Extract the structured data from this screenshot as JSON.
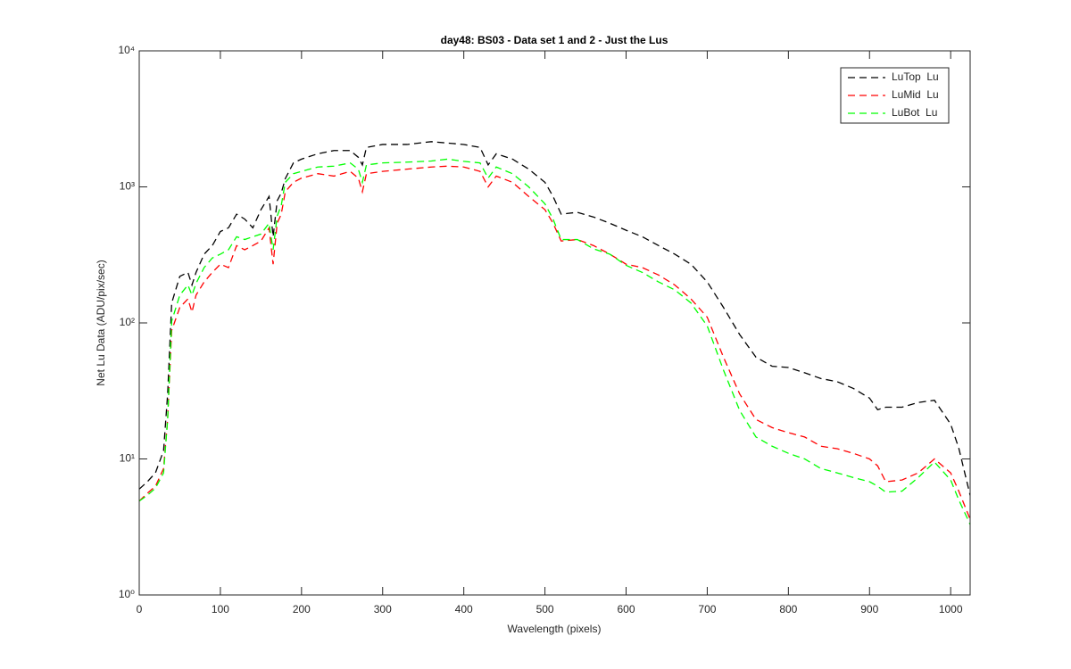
{
  "chart_data": {
    "type": "line",
    "title": "day48: BS03 - Data set 1 and 2 - Just the Lus",
    "x_label": "Wavelength (pixels)",
    "y_label": "Net Lu Data (ADU/pix/sec)",
    "log_y": true,
    "legend_loc": "upper right",
    "line_style": "dashed",
    "xlim": [
      0,
      1024
    ],
    "xticks": [
      0,
      100,
      200,
      300,
      400,
      500,
      600,
      700,
      800,
      900,
      1000
    ],
    "ylim": [
      1,
      10000
    ],
    "yticks": [
      {
        "value": 1,
        "label": "10⁰"
      },
      {
        "value": 10,
        "label": "10¹"
      },
      {
        "value": 100,
        "label": "10²"
      },
      {
        "value": 1000,
        "label": "10³"
      },
      {
        "value": 10000,
        "label": "10⁴"
      }
    ],
    "x": [
      0,
      10,
      20,
      30,
      35,
      40,
      50,
      60,
      65,
      70,
      80,
      90,
      100,
      110,
      120,
      130,
      140,
      150,
      160,
      165,
      170,
      175,
      180,
      190,
      200,
      220,
      240,
      260,
      270,
      275,
      280,
      300,
      330,
      360,
      380,
      400,
      420,
      430,
      440,
      460,
      480,
      500,
      510,
      520,
      540,
      560,
      580,
      600,
      620,
      640,
      660,
      680,
      700,
      720,
      740,
      760,
      780,
      800,
      820,
      840,
      860,
      880,
      900,
      910,
      920,
      940,
      960,
      980,
      1000,
      1010,
      1024
    ],
    "series": [
      {
        "name": "LuTop  Lu",
        "color": "#000000",
        "values": [
          6.0,
          6.8,
          7.9,
          11.5,
          30,
          140,
          220,
          235,
          190,
          235,
          320,
          370,
          470,
          500,
          630,
          580,
          500,
          680,
          850,
          430,
          790,
          900,
          1150,
          1500,
          1600,
          1750,
          1850,
          1850,
          1650,
          1450,
          1950,
          2050,
          2050,
          2150,
          2100,
          2050,
          1950,
          1450,
          1750,
          1600,
          1350,
          1080,
          850,
          630,
          650,
          600,
          540,
          480,
          430,
          370,
          320,
          270,
          200,
          130,
          82,
          56,
          48,
          47,
          43,
          39,
          37,
          33,
          28,
          23,
          24,
          24,
          26,
          27,
          18,
          12,
          5.4
        ]
      },
      {
        "name": "LuMid  Lu",
        "color": "#ff0000",
        "values": [
          4.9,
          5.6,
          6.3,
          8.5,
          19.5,
          88,
          130,
          150,
          120,
          160,
          200,
          235,
          270,
          255,
          370,
          345,
          370,
          400,
          500,
          270,
          540,
          630,
          920,
          1080,
          1160,
          1250,
          1200,
          1300,
          1160,
          920,
          1250,
          1300,
          1350,
          1400,
          1420,
          1400,
          1300,
          1000,
          1200,
          1080,
          850,
          680,
          540,
          400,
          410,
          370,
          320,
          270,
          255,
          225,
          190,
          150,
          110,
          56,
          30,
          19.5,
          17,
          15.6,
          14.5,
          12.4,
          11.9,
          11,
          10,
          8.9,
          6.8,
          7,
          7.9,
          10,
          7.9,
          5.8,
          3.6
        ]
      },
      {
        "name": "LuBot  Lu",
        "color": "#00ff00",
        "values": [
          4.9,
          5.4,
          6.1,
          7.9,
          19.5,
          103,
          160,
          190,
          160,
          195,
          255,
          300,
          320,
          345,
          430,
          410,
          430,
          450,
          540,
          345,
          610,
          730,
          1080,
          1250,
          1300,
          1400,
          1420,
          1500,
          1350,
          1080,
          1450,
          1500,
          1520,
          1550,
          1600,
          1540,
          1500,
          1160,
          1400,
          1250,
          1000,
          750,
          580,
          410,
          410,
          350,
          320,
          265,
          235,
          200,
          175,
          140,
          95,
          45,
          22.7,
          14.5,
          12.4,
          11,
          10,
          8.5,
          7.9,
          7.3,
          6.8,
          6.3,
          5.7,
          5.8,
          7.3,
          9.5,
          7,
          5,
          3.3
        ]
      }
    ]
  }
}
